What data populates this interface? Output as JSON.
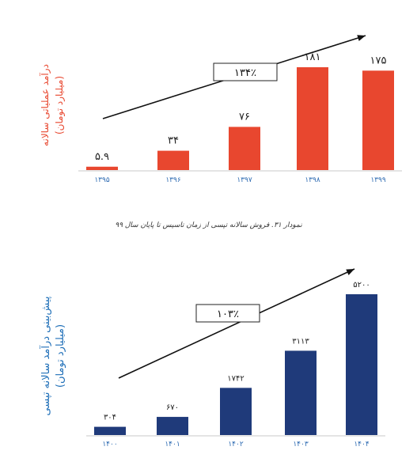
{
  "chart_data": [
    {
      "type": "bar",
      "categories": [
        "۱۳۹۵",
        "۱۳۹۶",
        "۱۳۹۷",
        "۱۳۹۸",
        "۱۳۹۹"
      ],
      "values": [
        5.9,
        34,
        76,
        181,
        175
      ],
      "value_labels": [
        "۵.۹",
        "۳۴",
        "۷۶",
        "۱۸۱",
        "۱۷۵"
      ],
      "ylabel": [
        "درآمد عملیاتی سالانه",
        "(میلیارد تومان)"
      ],
      "growth_label": "۱۳۴٪",
      "bar_color": "#e8472f",
      "label_color": "#e8472f",
      "category_color": "#2f6cb3",
      "ylim": [
        0,
        181
      ],
      "grid": false
    },
    {
      "type": "bar",
      "categories": [
        "۱۴۰۰",
        "۱۴۰۱",
        "۱۴۰۲",
        "۱۴۰۳",
        "۱۴۰۴"
      ],
      "values": [
        304,
        670,
        1742,
        3113,
        5200
      ],
      "value_labels": [
        "۳۰۴",
        "۶۷۰",
        "۱۷۴۲",
        "۳۱۱۳",
        "۵۲۰۰"
      ],
      "ylabel": [
        "پیش‌بینی درآمد سالانه تپسی",
        "(میلیارد تومان)"
      ],
      "growth_label": "۱۰۳٪",
      "bar_color": "#1f3a7a",
      "label_color": "#1f6fb8",
      "category_color": "#2f6cb3",
      "ylim": [
        0,
        5200
      ],
      "grid": false
    }
  ],
  "caption": "نمودار ۳۱. فروش سالانه تپسی از زمان تاسیس تا پایان سال ۹۹"
}
